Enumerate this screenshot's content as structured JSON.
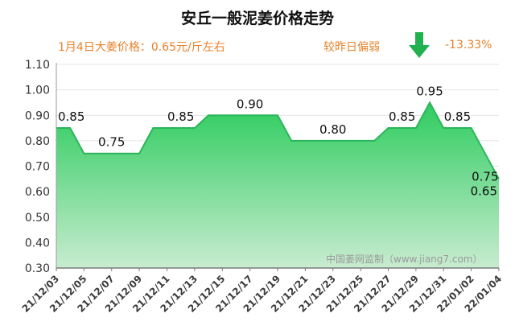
{
  "title": "安丘一般泥姜价格走势",
  "info": {
    "latest": "1月4日大姜价格：0.65元/斤左右",
    "trend_text": "较昨日偏弱",
    "change": "-13.33%",
    "trend_icon": "arrow-down-icon"
  },
  "watermark": "中国姜网监制（www.jiang7.com）",
  "colors": {
    "accent": "#e8822a",
    "area_top": "#2ecc5f",
    "area_bottom": "#c8ecd0",
    "line": "#2bb55a",
    "arrow": "#21b24f"
  },
  "chart_data": {
    "type": "area",
    "title": "安丘一般泥姜价格走势",
    "xlabel": "",
    "ylabel": "",
    "ylim": [
      0.3,
      1.1
    ],
    "yticks": [
      "0.30",
      "0.40",
      "0.50",
      "0.60",
      "0.70",
      "0.80",
      "0.90",
      "1.00",
      "1.10"
    ],
    "x_ticks": [
      "21/12/03",
      "21/12/05",
      "21/12/07",
      "21/12/09",
      "21/12/11",
      "21/12/13",
      "21/12/15",
      "21/12/17",
      "21/12/19",
      "21/12/21",
      "21/12/23",
      "21/12/25",
      "21/12/27",
      "21/12/29",
      "21/12/31",
      "22/01/02",
      "22/01/04"
    ],
    "series": [
      {
        "points": [
          [
            "21/12/03",
            0.85
          ],
          [
            "21/12/04",
            0.85
          ],
          [
            "21/12/05",
            0.75
          ],
          [
            "21/12/06",
            0.75
          ],
          [
            "21/12/07",
            0.75
          ],
          [
            "21/12/08",
            0.75
          ],
          [
            "21/12/09",
            0.75
          ],
          [
            "21/12/10",
            0.85
          ],
          [
            "21/12/11",
            0.85
          ],
          [
            "21/12/12",
            0.85
          ],
          [
            "21/12/13",
            0.85
          ],
          [
            "21/12/14",
            0.9
          ],
          [
            "21/12/15",
            0.9
          ],
          [
            "21/12/16",
            0.9
          ],
          [
            "21/12/17",
            0.9
          ],
          [
            "21/12/18",
            0.9
          ],
          [
            "21/12/19",
            0.9
          ],
          [
            "21/12/20",
            0.8
          ],
          [
            "21/12/21",
            0.8
          ],
          [
            "21/12/22",
            0.8
          ],
          [
            "21/12/23",
            0.8
          ],
          [
            "21/12/24",
            0.8
          ],
          [
            "21/12/25",
            0.8
          ],
          [
            "21/12/26",
            0.8
          ],
          [
            "21/12/27",
            0.85
          ],
          [
            "21/12/28",
            0.85
          ],
          [
            "21/12/29",
            0.85
          ],
          [
            "21/12/30",
            0.95
          ],
          [
            "21/12/31",
            0.85
          ],
          [
            "22/01/01",
            0.85
          ],
          [
            "22/01/02",
            0.85
          ],
          [
            "22/01/03",
            0.75
          ],
          [
            "22/01/04",
            0.65
          ]
        ]
      }
    ],
    "data_labels": [
      {
        "date": "21/12/03",
        "text": "0.85"
      },
      {
        "date": "21/12/07",
        "text": "0.75"
      },
      {
        "date": "21/12/12",
        "text": "0.85"
      },
      {
        "date": "21/12/17",
        "text": "0.90"
      },
      {
        "date": "21/12/23",
        "text": "0.80"
      },
      {
        "date": "21/12/28",
        "text": "0.85"
      },
      {
        "date": "21/12/30",
        "text": "0.95"
      },
      {
        "date": "22/01/01",
        "text": "0.85"
      },
      {
        "date": "22/01/03",
        "text": "0.75"
      },
      {
        "date": "22/01/04",
        "text": "0.65"
      }
    ],
    "grid": true,
    "legend": "none"
  }
}
